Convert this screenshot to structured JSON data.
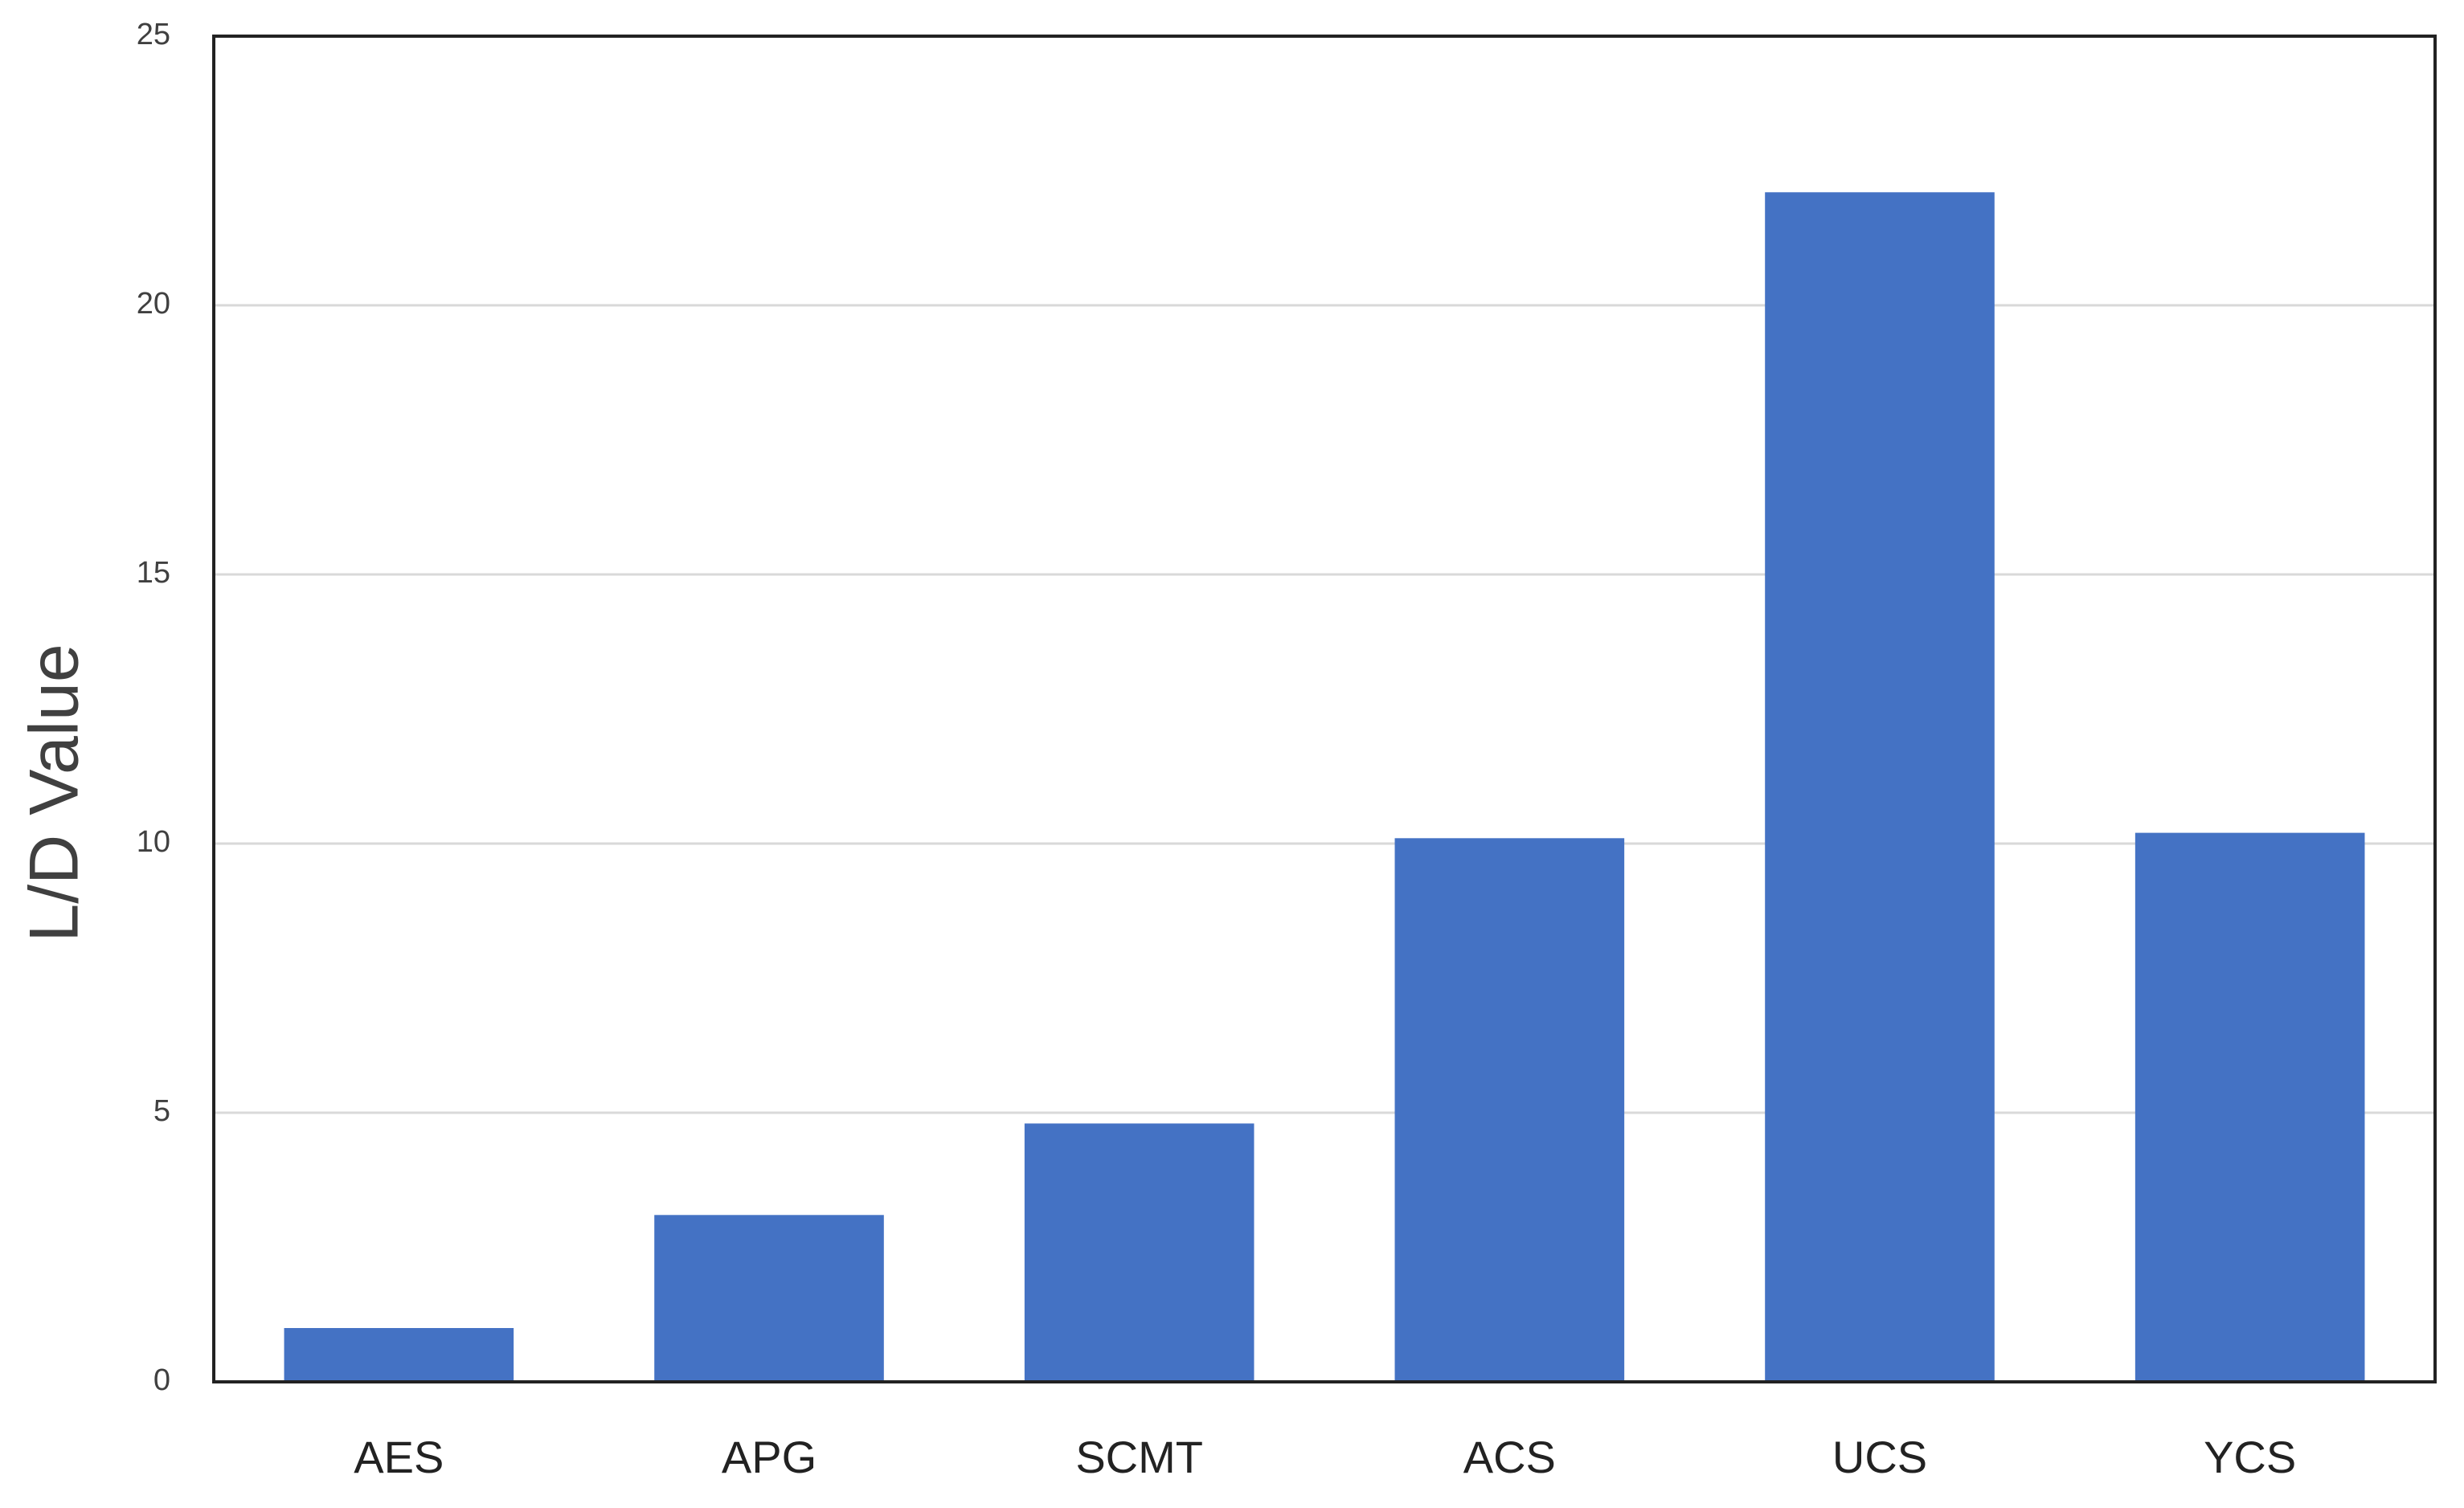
{
  "chart_data": {
    "type": "bar",
    "y_label": "L/D Value",
    "categories": [
      "AES",
      "APG",
      "SCMT",
      "ACS",
      "UCS",
      "YCS"
    ],
    "values": [
      1.0,
      3.1,
      4.8,
      10.1,
      22.1,
      10.2
    ],
    "color": "#4472c4",
    "ylim": [
      0,
      25
    ],
    "yticks": [
      0,
      5,
      10,
      15,
      20,
      25
    ],
    "grid": true
  }
}
